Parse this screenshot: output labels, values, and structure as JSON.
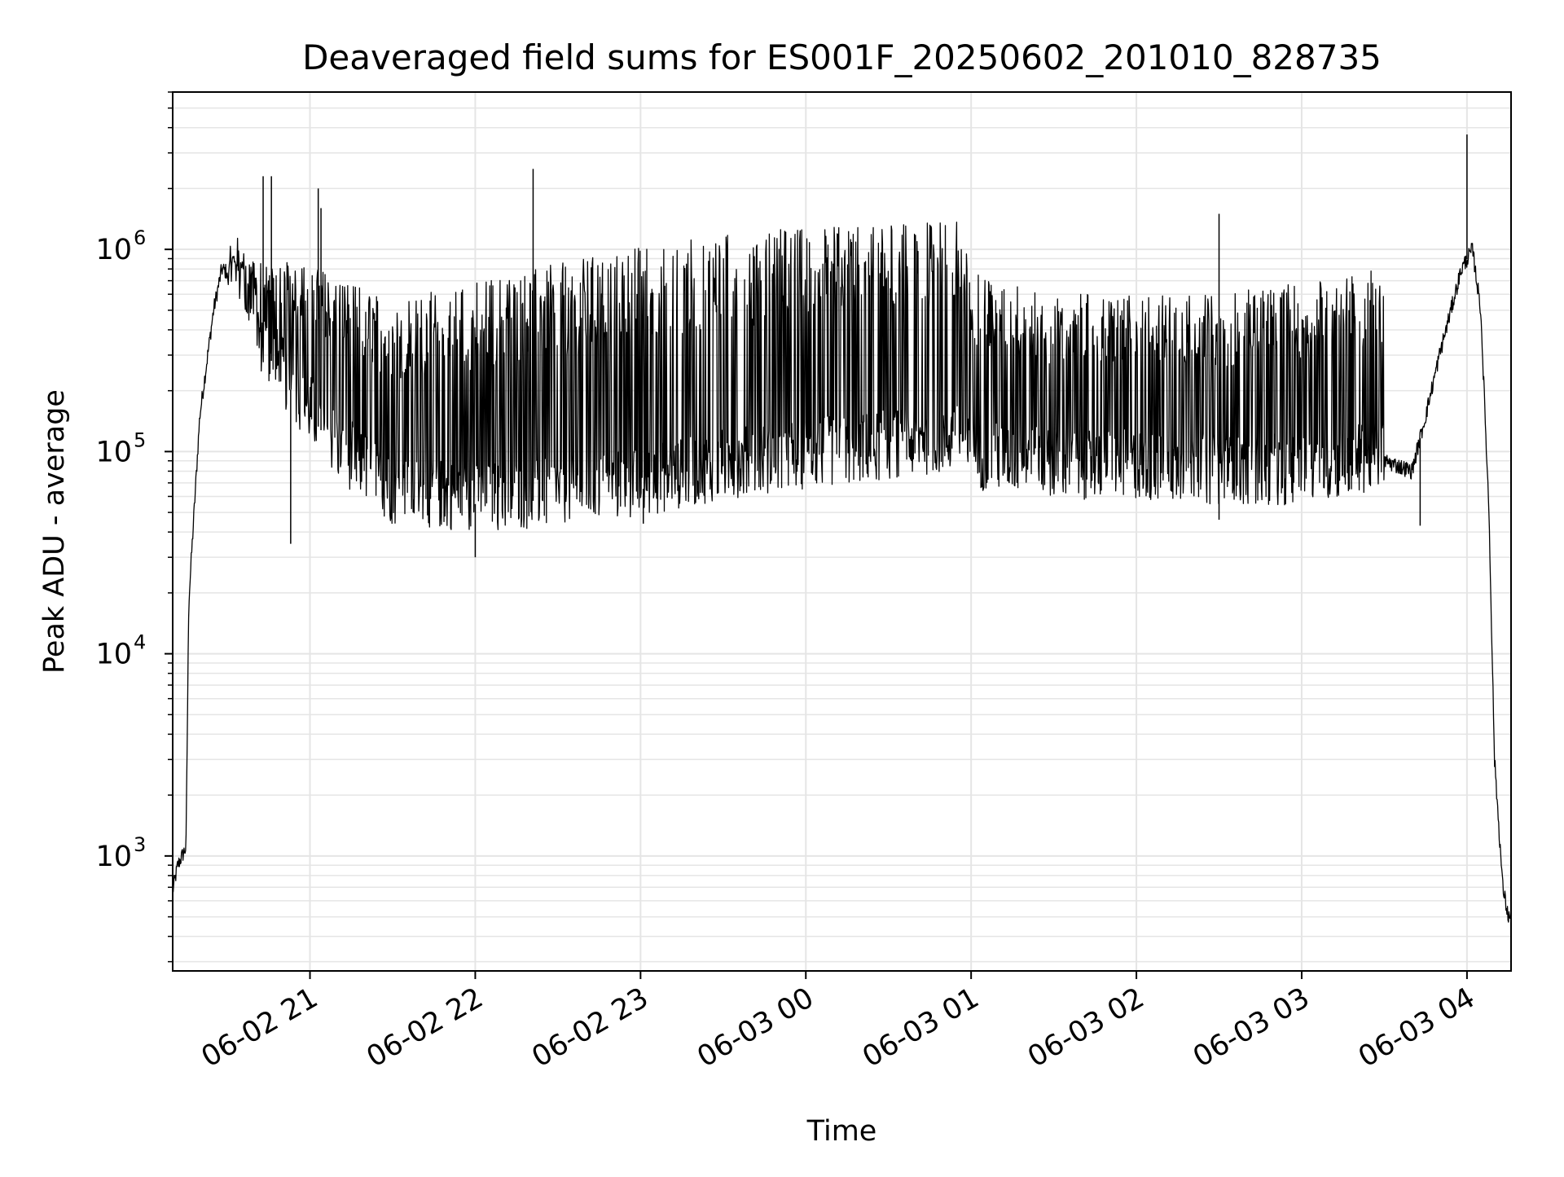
{
  "chart_data": {
    "type": "line",
    "title": "Deaveraged field sums for ES001F_20250602_201010_828735",
    "xlabel": "Time",
    "ylabel": "Peak ADU - average",
    "y_scale": "log",
    "ylim": [
      270,
      6000000
    ],
    "xlim": [
      "2025-06-02 20:10:10",
      "2025-06-03 04:16:00"
    ],
    "grid": true,
    "grid_minor": true,
    "line_color": "#000000",
    "grid_color": "#e5e5e5",
    "x_ticks": [
      {
        "time": "2025-06-02 21:00",
        "label": "06-02 21"
      },
      {
        "time": "2025-06-02 22:00",
        "label": "06-02 22"
      },
      {
        "time": "2025-06-02 23:00",
        "label": "06-02 23"
      },
      {
        "time": "2025-06-03 00:00",
        "label": "06-03 00"
      },
      {
        "time": "2025-06-03 01:00",
        "label": "06-03 01"
      },
      {
        "time": "2025-06-03 02:00",
        "label": "06-03 02"
      },
      {
        "time": "2025-06-03 03:00",
        "label": "06-03 03"
      },
      {
        "time": "2025-06-03 04:00",
        "label": "06-03 04"
      }
    ],
    "y_ticks": [
      {
        "value": 1000,
        "base": "10",
        "exp": "3"
      },
      {
        "value": 10000,
        "base": "10",
        "exp": "4"
      },
      {
        "value": 100000,
        "base": "10",
        "exp": "5"
      },
      {
        "value": 1000000,
        "base": "10",
        "exp": "6"
      }
    ],
    "series": [
      {
        "baseline": [
          [
            "2025-06-02 20:10",
            650
          ],
          [
            "2025-06-02 20:12",
            900
          ],
          [
            "2025-06-02 20:15",
            1100
          ],
          [
            "2025-06-02 20:16",
            18000
          ],
          [
            "2025-06-02 20:20",
            150000
          ],
          [
            "2025-06-02 20:25",
            500000
          ],
          [
            "2025-06-02 20:28",
            800000
          ],
          [
            "2025-06-02 20:35",
            700000
          ],
          [
            "2025-06-02 20:40",
            380000
          ],
          [
            "2025-06-02 20:50",
            230000
          ],
          [
            "2025-06-02 21:00",
            150000
          ],
          [
            "2025-06-02 21:10",
            100000
          ],
          [
            "2025-06-02 21:30",
            60000
          ],
          [
            "2025-06-02 22:00",
            55000
          ],
          [
            "2025-06-02 22:30",
            58000
          ],
          [
            "2025-06-02 23:00",
            65000
          ],
          [
            "2025-06-02 23:30",
            80000
          ],
          [
            "2025-06-03 00:00",
            90000
          ],
          [
            "2025-06-03 00:30",
            100000
          ],
          [
            "2025-06-03 00:55",
            110000
          ],
          [
            "2025-06-03 01:00",
            90000
          ],
          [
            "2025-06-03 01:30",
            80000
          ],
          [
            "2025-06-03 02:00",
            80000
          ],
          [
            "2025-06-03 02:30",
            75000
          ],
          [
            "2025-06-03 03:00",
            75000
          ],
          [
            "2025-06-03 03:30",
            90000
          ],
          [
            "2025-06-03 03:40",
            80000
          ],
          [
            "2025-06-03 03:45",
            150000
          ],
          [
            "2025-06-03 03:50",
            300000
          ],
          [
            "2025-06-03 03:58",
            800000
          ],
          [
            "2025-06-03 04:02",
            1000000
          ],
          [
            "2025-06-03 04:05",
            500000
          ],
          [
            "2025-06-03 04:08",
            50000
          ],
          [
            "2025-06-03 04:10",
            3000
          ],
          [
            "2025-06-03 04:13",
            700
          ],
          [
            "2025-06-03 04:15",
            500
          ]
        ],
        "upper_envelope": [
          [
            "2025-06-02 20:30",
            900000
          ],
          [
            "2025-06-02 21:00",
            850000
          ],
          [
            "2025-06-02 21:30",
            550000
          ],
          [
            "2025-06-02 22:00",
            700000
          ],
          [
            "2025-06-02 22:30",
            850000
          ],
          [
            "2025-06-02 23:00",
            1050000
          ],
          [
            "2025-06-02 23:30",
            1200000
          ],
          [
            "2025-06-03 00:00",
            1300000
          ],
          [
            "2025-06-03 00:30",
            1350000
          ],
          [
            "2025-06-03 00:55",
            1400000
          ],
          [
            "2025-06-03 01:00",
            800000
          ],
          [
            "2025-06-03 01:30",
            600000
          ],
          [
            "2025-06-03 02:00",
            600000
          ],
          [
            "2025-06-03 02:30",
            600000
          ],
          [
            "2025-06-03 03:00",
            700000
          ],
          [
            "2025-06-03 03:30",
            800000
          ]
        ],
        "spikes": [
          [
            "2025-06-02 20:43",
            2300000
          ],
          [
            "2025-06-02 20:46",
            2300000
          ],
          [
            "2025-06-02 21:03",
            2000000
          ],
          [
            "2025-06-02 21:04",
            1600000
          ],
          [
            "2025-06-02 22:21",
            2500000
          ],
          [
            "2025-06-03 02:30",
            1500000
          ],
          [
            "2025-06-03 04:00",
            3700000
          ]
        ],
        "dips": [
          [
            "2025-06-02 20:53",
            35000
          ],
          [
            "2025-06-02 22:00",
            30000
          ],
          [
            "2025-06-02 23:01",
            44000
          ],
          [
            "2025-06-03 02:30",
            46000
          ],
          [
            "2025-06-03 03:43",
            43000
          ],
          [
            "2025-06-03 04:16",
            430
          ]
        ]
      }
    ]
  }
}
